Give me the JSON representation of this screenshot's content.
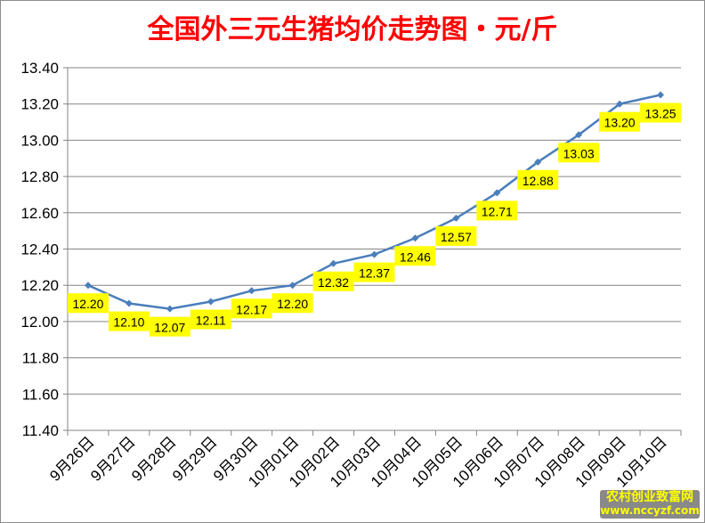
{
  "chart_data": {
    "type": "line",
    "title": "全国外三元生猪均价走势图・元/斤",
    "xlabel": "",
    "ylabel": "",
    "categories": [
      "9月26日",
      "9月27日",
      "9月28日",
      "9月29日",
      "9月30日",
      "10月01日",
      "10月02日",
      "10月03日",
      "10月04日",
      "10月05日",
      "10月06日",
      "10月07日",
      "10月08日",
      "10月09日",
      "10月10日"
    ],
    "series": [
      {
        "values": [
          12.2,
          12.1,
          12.07,
          12.11,
          12.17,
          12.2,
          12.32,
          12.37,
          12.46,
          12.57,
          12.71,
          12.88,
          13.03,
          13.2,
          13.25
        ]
      }
    ],
    "ylim": [
      11.4,
      13.4
    ],
    "yticks": [
      "11.40",
      "11.60",
      "11.80",
      "12.00",
      "12.20",
      "12.40",
      "12.60",
      "12.80",
      "13.00",
      "13.20",
      "13.40"
    ],
    "grid": true,
    "legend": "none",
    "line_color": "#4a7ebb",
    "label_bg": "#ffff00",
    "title_color": "#ff0000"
  },
  "watermark": {
    "line1": "农村创业致富网",
    "line2": "www.nccyzf.com"
  }
}
